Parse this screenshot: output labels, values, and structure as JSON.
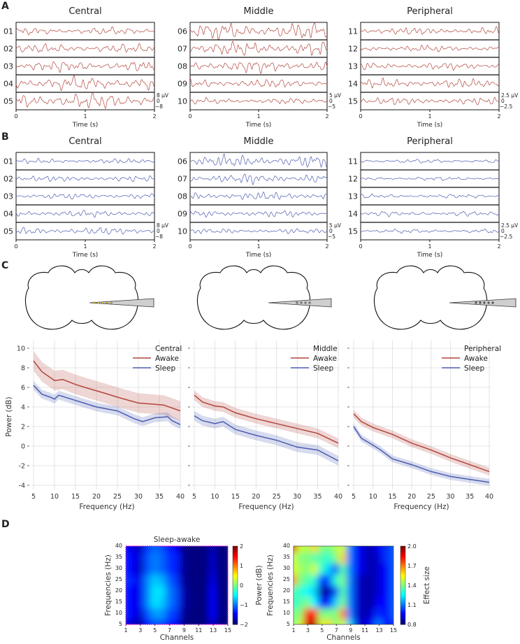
{
  "panel_labels": {
    "A": "A",
    "B": "B",
    "C": "C",
    "D": "D"
  },
  "time_axis": {
    "ticks": [
      "0",
      "1",
      "2"
    ],
    "label": "Time (s)"
  },
  "trace_panels": [
    {
      "state": "awake",
      "color": "#b2453c",
      "groups": [
        {
          "title": "Central",
          "channels": [
            "01",
            "02",
            "03",
            "04",
            "05"
          ],
          "amplitude": [
            0.45,
            0.55,
            0.65,
            0.85,
            1.0
          ],
          "scale": [
            "8 µV",
            "0",
            "−8"
          ]
        },
        {
          "title": "Middle",
          "channels": [
            "06",
            "07",
            "08",
            "09",
            "10"
          ],
          "amplitude": [
            1.0,
            0.85,
            0.75,
            0.55,
            0.35
          ],
          "scale": [
            "5 µV",
            "0",
            "−5"
          ]
        },
        {
          "title": "Peripheral",
          "channels": [
            "11",
            "12",
            "13",
            "14",
            "15"
          ],
          "amplitude": [
            0.45,
            0.4,
            0.45,
            0.55,
            0.45
          ],
          "scale": [
            "2.5 µV",
            "0",
            "−2.5"
          ]
        }
      ]
    },
    {
      "state": "sleep",
      "color": "#4b5cb0",
      "groups": [
        {
          "title": "Central",
          "channels": [
            "01",
            "02",
            "03",
            "04",
            "05"
          ],
          "amplitude": [
            0.3,
            0.35,
            0.35,
            0.4,
            0.45
          ],
          "scale": [
            "8 µV",
            "0",
            "−8"
          ]
        },
        {
          "title": "Middle",
          "channels": [
            "06",
            "07",
            "08",
            "09",
            "10"
          ],
          "amplitude": [
            0.75,
            0.6,
            0.5,
            0.4,
            0.3
          ],
          "scale": [
            "5 µV",
            "0",
            "−5"
          ]
        },
        {
          "title": "Peripheral",
          "channels": [
            "11",
            "12",
            "13",
            "14",
            "15"
          ],
          "amplitude": [
            0.25,
            0.22,
            0.25,
            0.3,
            0.25
          ],
          "scale": [
            "2.5 µV",
            "0",
            "−2.5"
          ]
        }
      ]
    }
  ],
  "colors": {
    "awake": "#b2453c",
    "sleep": "#4b5cb0",
    "probe_dots_central": "#e8d24a",
    "grid": "#dddddd"
  },
  "chart_data": [
    {
      "type": "line",
      "title": "Central",
      "xlabel": "Frequency (Hz)",
      "ylabel": "Power (dB)",
      "xlim": [
        5,
        40
      ],
      "ylim": [
        -4.5,
        10.8
      ],
      "xticks": [
        "5",
        "10",
        "15",
        "20",
        "25",
        "30",
        "35",
        "40"
      ],
      "yticks": [
        "10",
        "8",
        "6",
        "4",
        "2",
        "0",
        "-2",
        "-4"
      ],
      "legend_position": "top-right",
      "series": [
        {
          "name": "Awake",
          "x": [
            5,
            7,
            10,
            12,
            15,
            18,
            22,
            25,
            30,
            33,
            36,
            40
          ],
          "y": [
            8.7,
            7.6,
            6.7,
            6.8,
            6.3,
            5.9,
            5.4,
            5.0,
            4.4,
            4.3,
            4.2,
            3.6
          ],
          "band": 1.0
        },
        {
          "name": "Sleep",
          "x": [
            5,
            7,
            9,
            10,
            11,
            14,
            17,
            20,
            25,
            29,
            31,
            34,
            37,
            38,
            40
          ],
          "y": [
            6.2,
            5.3,
            5.0,
            4.8,
            5.2,
            4.8,
            4.4,
            4.0,
            3.6,
            2.8,
            2.5,
            2.9,
            3.0,
            2.6,
            2.2
          ],
          "band": 0.45
        }
      ]
    },
    {
      "type": "line",
      "title": "Middle",
      "xlabel": "Frequency (Hz)",
      "xlim": [
        5,
        40
      ],
      "ylim": [
        -4.5,
        10.8
      ],
      "xticks": [
        "5",
        "10",
        "15",
        "20",
        "25",
        "30",
        "35",
        "40"
      ],
      "legend_position": "top-right",
      "series": [
        {
          "name": "Awake",
          "x": [
            5,
            7,
            10,
            12,
            15,
            20,
            25,
            30,
            35,
            40
          ],
          "y": [
            5.2,
            4.5,
            4.1,
            4.0,
            3.4,
            2.8,
            2.3,
            1.8,
            1.3,
            0.3
          ],
          "band": 0.5
        },
        {
          "name": "Sleep",
          "x": [
            5,
            7,
            10,
            12,
            15,
            20,
            25,
            30,
            35,
            40
          ],
          "y": [
            3.1,
            2.6,
            2.3,
            2.5,
            1.7,
            1.1,
            0.6,
            -0.1,
            -0.4,
            -1.5
          ],
          "band": 0.5
        }
      ]
    },
    {
      "type": "line",
      "title": "Peripheral",
      "xlabel": "Frequency (Hz)",
      "xlim": [
        5,
        40
      ],
      "ylim": [
        -4.5,
        10.8
      ],
      "xticks": [
        "5",
        "10",
        "15",
        "20",
        "25",
        "30",
        "35",
        "40"
      ],
      "legend_position": "top-right",
      "series": [
        {
          "name": "Awake",
          "x": [
            5,
            7,
            10,
            15,
            20,
            25,
            30,
            35,
            40
          ],
          "y": [
            3.3,
            2.5,
            1.9,
            1.2,
            0.3,
            -0.4,
            -1.2,
            -1.9,
            -2.6
          ],
          "band": 0.4
        },
        {
          "name": "Sleep",
          "x": [
            5,
            7,
            10,
            12,
            15,
            20,
            25,
            30,
            35,
            40
          ],
          "y": [
            2.0,
            0.8,
            0.1,
            -0.4,
            -1.3,
            -1.9,
            -2.6,
            -3.1,
            -3.4,
            -3.7
          ],
          "band": 0.35
        }
      ]
    },
    {
      "type": "heatmap",
      "title": "Sleep-awake",
      "xlabel": "Channels",
      "ylabel": "Frequencies (Hz)",
      "xticks": [
        "1",
        "3",
        "5",
        "7",
        "9",
        "11",
        "13",
        "15"
      ],
      "yticks": [
        "5",
        "10",
        "15",
        "20",
        "25",
        "30",
        "35",
        "40"
      ],
      "colorbar_ticks": [
        "2",
        "1",
        "0",
        "−1",
        "−2"
      ],
      "clim": [
        -2,
        2
      ],
      "rows_freq": [
        5,
        10,
        15,
        20,
        25,
        30,
        35,
        40
      ],
      "values": [
        [
          -1.6,
          -1.7,
          -1.9,
          -1.5,
          -1.2,
          -1.2,
          -1.4,
          -1.5,
          -2,
          -2,
          -2,
          -2,
          -1.7,
          -2,
          -2
        ],
        [
          -1.4,
          -1.5,
          -1.7,
          -1.2,
          -0.9,
          -0.9,
          -1.2,
          -1.3,
          -1.9,
          -2,
          -2,
          -2,
          -1.5,
          -2,
          -2
        ],
        [
          -1.4,
          -1.5,
          -1.6,
          -1.0,
          -0.6,
          -0.7,
          -1.0,
          -1.2,
          -1.8,
          -2,
          -2,
          -2,
          -1.5,
          -2,
          -2
        ],
        [
          -1.4,
          -1.5,
          -1.6,
          -1.0,
          -0.6,
          -0.6,
          -1.0,
          -1.2,
          -1.8,
          -2,
          -2,
          -2,
          -1.5,
          -2,
          -2
        ],
        [
          -1.3,
          -1.4,
          -1.6,
          -1.0,
          -0.7,
          -0.8,
          -1.1,
          -1.3,
          -1.9,
          -2,
          -2,
          -2,
          -1.6,
          -2,
          -2
        ],
        [
          -1.4,
          -1.5,
          -1.8,
          -1.2,
          -1.0,
          -1.1,
          -1.3,
          -1.4,
          -1.9,
          -2,
          -2,
          -2,
          -1.7,
          -2,
          -2
        ],
        [
          -1.4,
          -1.5,
          -1.7,
          -1.2,
          -1.0,
          -1.1,
          -1.3,
          -1.4,
          -1.9,
          -2,
          -2,
          -2,
          -1.7,
          -2,
          -2
        ],
        [
          -1.5,
          -1.6,
          -1.8,
          -1.3,
          -1.1,
          -1.2,
          -1.4,
          -1.5,
          -2,
          -2,
          -2,
          -2,
          -1.8,
          -2,
          -2
        ]
      ]
    },
    {
      "type": "heatmap",
      "title": "",
      "xlabel": "Channels",
      "ylabel": "Frequencies (Hz)",
      "ylabel_outer": "Power (dB)",
      "colorbar_label": "Effect size",
      "xticks": [
        "1",
        "3",
        "5",
        "7",
        "9",
        "11",
        "13",
        "15"
      ],
      "yticks": [
        "5",
        "10",
        "15",
        "20",
        "25",
        "30",
        "35",
        "40"
      ],
      "colorbar_ticks": [
        "2.0",
        "1.7",
        "1.4",
        "1.1",
        "0.8"
      ],
      "clim": [
        0.8,
        2.0
      ],
      "rows_freq": [
        5,
        10,
        15,
        20,
        25,
        30,
        35,
        40
      ],
      "values": [
        [
          1.4,
          1.5,
          1.9,
          1.95,
          1.5,
          1.6,
          1.4,
          1.5,
          1.2,
          0.9,
          0.9,
          0.95,
          1.1,
          0.95,
          1.0
        ],
        [
          1.4,
          1.4,
          1.8,
          1.85,
          1.4,
          1.4,
          1.4,
          1.7,
          1.1,
          0.9,
          0.85,
          0.9,
          1.0,
          0.95,
          1.05
        ],
        [
          1.3,
          1.35,
          1.4,
          1.25,
          1.0,
          0.95,
          1.2,
          1.4,
          1.1,
          0.9,
          0.85,
          0.85,
          0.95,
          0.95,
          1.05
        ],
        [
          1.35,
          1.3,
          1.25,
          1.2,
          0.85,
          0.85,
          1.05,
          1.35,
          1.1,
          0.9,
          0.85,
          0.85,
          0.9,
          0.95,
          1.05
        ],
        [
          1.7,
          1.4,
          1.35,
          1.3,
          1.0,
          1.05,
          1.3,
          1.4,
          1.1,
          0.9,
          0.85,
          0.85,
          0.9,
          0.95,
          1.05
        ],
        [
          1.5,
          1.45,
          1.4,
          1.5,
          1.3,
          1.2,
          1.05,
          1.35,
          1.1,
          0.95,
          0.9,
          0.85,
          0.9,
          0.95,
          1.05
        ],
        [
          1.5,
          1.4,
          1.4,
          1.35,
          1.35,
          1.3,
          1.4,
          1.6,
          1.1,
          0.95,
          0.9,
          0.85,
          0.9,
          1.0,
          1.05
        ],
        [
          1.9,
          1.5,
          1.45,
          1.6,
          1.4,
          1.4,
          1.45,
          1.5,
          1.1,
          0.95,
          0.9,
          0.85,
          0.95,
          1.0,
          1.05
        ]
      ]
    }
  ]
}
